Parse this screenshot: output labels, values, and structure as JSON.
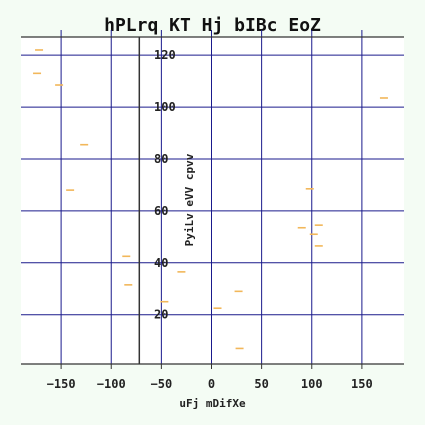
{
  "chart_data": {
    "type": "scatter",
    "title": "hPLrq KT Hj bIBc EoZ",
    "xlabel": "uFj  mDifXe",
    "ylabel": "PyiLv eVV cpvv",
    "xlim": [
      -190,
      192
    ],
    "ylim": [
      1,
      127
    ],
    "x_ticks": [
      -150,
      -100,
      -50,
      0,
      50,
      100,
      150
    ],
    "y_ticks": [
      20,
      40,
      60,
      80,
      100,
      120
    ],
    "grid": true,
    "y_axis_at_x": -72,
    "colors": {
      "background": "#f4fcf4",
      "plot_background": "#ffffff",
      "grid": "#1a1a8c",
      "axis": "#333333",
      "marker": "#f2b75a"
    },
    "marker": "dash",
    "series": [
      {
        "points": [
          [
            -172,
            122
          ],
          [
            -174,
            113
          ],
          [
            -152,
            108.5
          ],
          [
            -127,
            85.5
          ],
          [
            -141,
            68
          ],
          [
            -85,
            42.5
          ],
          [
            -83,
            31.5
          ],
          [
            -47,
            25
          ],
          [
            -30,
            36.5
          ],
          [
            6,
            22.5
          ],
          [
            27,
            29
          ],
          [
            28,
            7
          ],
          [
            98,
            68.5
          ],
          [
            90,
            53.5
          ],
          [
            102,
            51
          ],
          [
            107,
            54.5
          ],
          [
            107,
            46.5
          ],
          [
            172,
            103.5
          ]
        ]
      }
    ]
  }
}
